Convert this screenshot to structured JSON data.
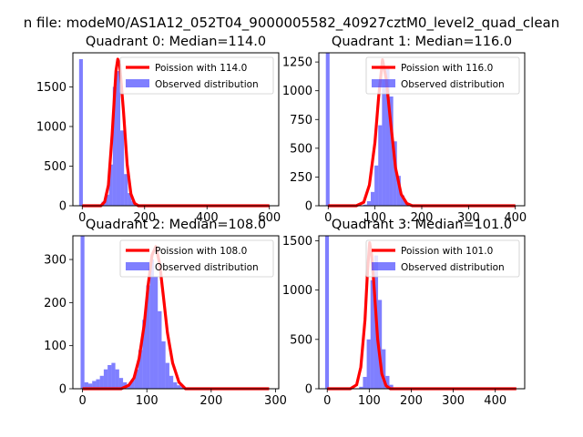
{
  "figure": {
    "suptitle": "n file: modeM0/AS1A12_052T04_9000005582_40927cztM0_level2_quad_clean"
  },
  "colors": {
    "poisson": "#ff0000",
    "observed": "#0000ff"
  },
  "chart_data": [
    {
      "type": "bar",
      "title": "Quadrant 0: Median=114.0",
      "xlim": [
        -30,
        630
      ],
      "ylim": [
        0,
        1930
      ],
      "xticks": [
        0,
        200,
        400,
        600
      ],
      "yticks": [
        0,
        500,
        1000,
        1500
      ],
      "legend": {
        "position": "top-right",
        "entries": [
          "Poission with 114.0",
          "Observed distribution"
        ]
      },
      "hist": {
        "x0": -10,
        "bin_width": 12,
        "values": [
          1850,
          0,
          0,
          0,
          0,
          15,
          50,
          140,
          520,
          1500,
          1700,
          950,
          400,
          160,
          60,
          20,
          6,
          2
        ]
      },
      "poisson": {
        "x": [
          0,
          60,
          72,
          84,
          96,
          108,
          114,
          120,
          132,
          144,
          156,
          168,
          180,
          600
        ],
        "y": [
          0,
          0,
          50,
          260,
          900,
          1700,
          1850,
          1780,
          1200,
          520,
          150,
          30,
          0,
          0
        ]
      }
    },
    {
      "type": "bar",
      "title": "Quadrant 1: Median=116.0",
      "xlim": [
        -20,
        420
      ],
      "ylim": [
        0,
        1330
      ],
      "xticks": [
        0,
        100,
        200,
        300,
        400
      ],
      "yticks": [
        0,
        250,
        500,
        750,
        1000,
        1250
      ],
      "legend": {
        "position": "top-right",
        "entries": [
          "Poission with 116.0",
          "Observed distribution"
        ]
      },
      "hist": {
        "x0": -5,
        "bin_width": 8,
        "values": [
          1330,
          0,
          0,
          0,
          0,
          0,
          0,
          0,
          0,
          0,
          10,
          40,
          120,
          350,
          700,
          1100,
          1200,
          950,
          560,
          260,
          90,
          25,
          8,
          2
        ]
      },
      "poisson": {
        "x": [
          0,
          60,
          76,
          88,
          100,
          108,
          116,
          124,
          132,
          144,
          156,
          168,
          180,
          400
        ],
        "y": [
          0,
          0,
          30,
          180,
          550,
          950,
          1270,
          1100,
          780,
          330,
          100,
          20,
          0,
          0
        ]
      }
    },
    {
      "type": "bar",
      "title": "Quadrant 2: Median=108.0",
      "xlim": [
        -15,
        305
      ],
      "ylim": [
        0,
        355
      ],
      "xticks": [
        0,
        100,
        200,
        300
      ],
      "yticks": [
        0,
        100,
        200,
        300
      ],
      "legend": {
        "position": "top-right",
        "entries": [
          "Poission with 108.0",
          "Observed distribution"
        ]
      },
      "hist": {
        "x0": -3,
        "bin_width": 6,
        "values": [
          355,
          15,
          12,
          18,
          22,
          30,
          45,
          55,
          60,
          45,
          25,
          15,
          10,
          20,
          45,
          90,
          160,
          240,
          300,
          260,
          180,
          110,
          60,
          30,
          15,
          8,
          4,
          2,
          1,
          1
        ]
      },
      "poisson": {
        "x": [
          0,
          60,
          72,
          80,
          88,
          96,
          102,
          108,
          114,
          120,
          126,
          132,
          140,
          150,
          160,
          290
        ],
        "y": [
          0,
          0,
          8,
          25,
          70,
          150,
          240,
          310,
          330,
          290,
          210,
          130,
          60,
          15,
          0,
          0
        ]
      }
    },
    {
      "type": "bar",
      "title": "Quadrant 3: Median=101.0",
      "xlim": [
        -20,
        470
      ],
      "ylim": [
        0,
        1550
      ],
      "xticks": [
        0,
        100,
        200,
        300,
        400
      ],
      "yticks": [
        0,
        500,
        1000,
        1500
      ],
      "legend": {
        "position": "top-right",
        "entries": [
          "Poission with 101.0",
          "Observed distribution"
        ]
      },
      "hist": {
        "x0": -5,
        "bin_width": 9,
        "values": [
          1550,
          0,
          0,
          0,
          0,
          0,
          0,
          0,
          0,
          20,
          120,
          500,
          1100,
          1350,
          900,
          400,
          130,
          40,
          10,
          3
        ]
      },
      "poisson": {
        "x": [
          0,
          55,
          70,
          80,
          90,
          96,
          101,
          106,
          112,
          120,
          130,
          140,
          150,
          450
        ],
        "y": [
          0,
          0,
          40,
          220,
          700,
          1200,
          1480,
          1350,
          1000,
          500,
          150,
          30,
          0,
          0
        ]
      }
    }
  ]
}
